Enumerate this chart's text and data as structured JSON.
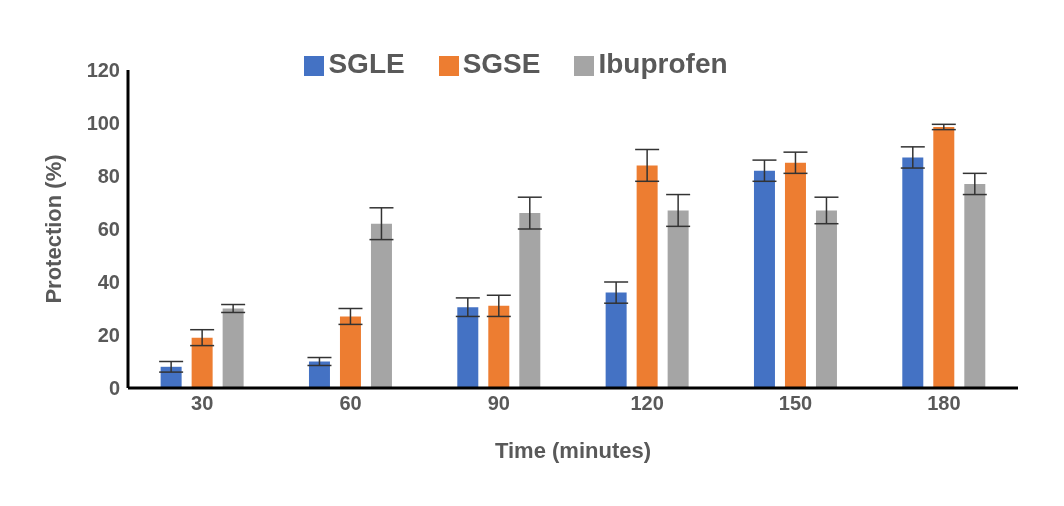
{
  "chart_data": {
    "type": "bar",
    "xlabel": "Time (minutes)",
    "ylabel": "Protection (%)",
    "categories": [
      "30",
      "60",
      "90",
      "120",
      "150",
      "180"
    ],
    "series": [
      {
        "name": "SGLE",
        "color": "#4472c4",
        "values": [
          8,
          10,
          30.5,
          36,
          82,
          87
        ],
        "errors": [
          2,
          1.5,
          3.5,
          4,
          4,
          4
        ]
      },
      {
        "name": "SGSE",
        "color": "#ed7d31",
        "values": [
          19,
          27,
          31,
          84,
          85,
          98.5
        ],
        "errors": [
          3,
          3,
          4,
          6,
          4,
          1
        ]
      },
      {
        "name": "Ibuprofen",
        "color": "#a5a5a5",
        "values": [
          30,
          62,
          66,
          67,
          67,
          77
        ],
        "errors": [
          1.5,
          6,
          6,
          6,
          5,
          4
        ]
      }
    ],
    "ylim": [
      0,
      120
    ],
    "yticks": [
      0,
      20,
      40,
      60,
      80,
      100,
      120
    ],
    "grid": false,
    "legend": "top"
  }
}
